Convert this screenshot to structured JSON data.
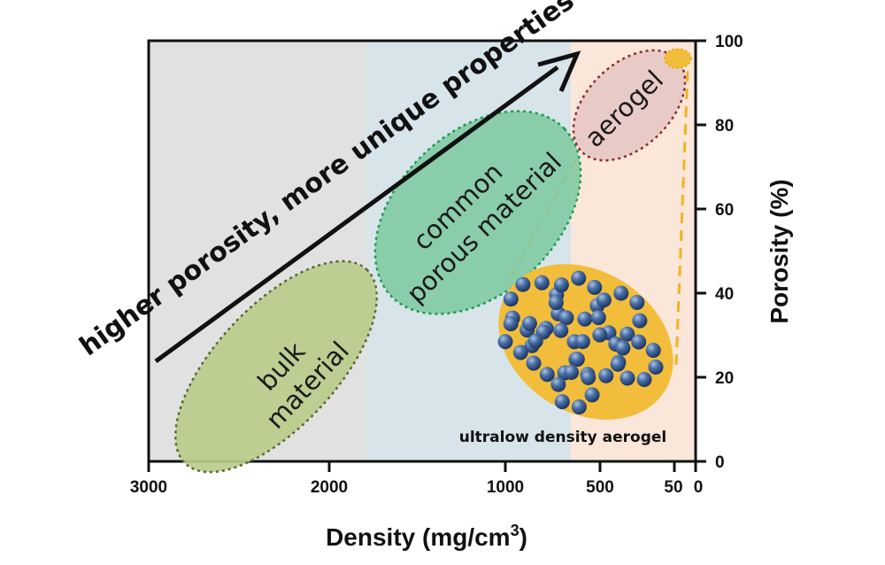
{
  "chart_data": {
    "type": "diagram",
    "xlabel": "Density (mg/cm",
    "xlabel_sup": "3",
    "xlabel_close": ")",
    "ylabel": "Porosity (%)",
    "x_ticks": [
      "3000",
      "2000",
      "1000",
      "500",
      "50",
      "0"
    ],
    "y_ticks": [
      "0",
      "20",
      "40",
      "60",
      "80",
      "100"
    ],
    "ylim": [
      0,
      100
    ],
    "regions": [
      {
        "label_lines": [
          "bulk",
          "material"
        ],
        "color": "#b8cc8a"
      },
      {
        "label_lines": [
          "common",
          "porous material"
        ],
        "color": "#7fc9a2"
      },
      {
        "label_lines": [
          "aerogel"
        ],
        "color": "#e6c9c4"
      }
    ],
    "background_bands": [
      "#e1e1e1",
      "#d7e4ea",
      "#fbe6da"
    ],
    "arrow_label": "higher porosity, more unique properties",
    "inset_label": "ultralow density aerogel",
    "colors": {
      "inset_fill": "#f2bd3a",
      "particle": "#4a6fa5",
      "dashed_connector": "#f2b320"
    }
  }
}
